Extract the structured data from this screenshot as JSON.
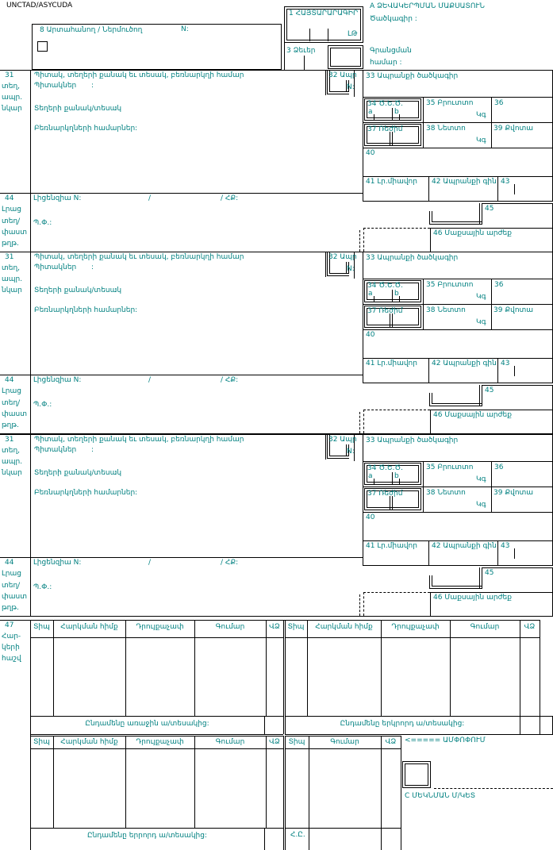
{
  "colors": {
    "label": "#008080",
    "line": "#000000",
    "background": "#ffffff"
  },
  "header": {
    "brand": "UNCTAD/ASYCUDA",
    "box8": {
      "label": "8 Արտահանող / Ներմուծող",
      "n": "N:"
    },
    "box1": {
      "label": "1 ՀԱՅՏԱՐԱՐԱԳԻՐ",
      "code": "ԼԹ"
    },
    "box3": {
      "label": "3 Ձեւեր"
    },
    "office": {
      "title": "A ՁԵՎԱԿԵՐՊՄԱՆ ՄԱՔՍԱՏՈՒՆ",
      "code_label": "Ծածկագիր :"
    },
    "registration": {
      "line1": "Գրանցման",
      "line2": "համար :"
    }
  },
  "item": {
    "no31": "31",
    "side31": [
      "տեղ,",
      "ապր.",
      "նկար"
    ],
    "title31": "Պիտակ, տեղերի քանակ եւ տեսակ, բեռնարկղի համար",
    "marks_label": "Պիտակներ",
    "colon": ":",
    "qty_label": "Տեղերի քանակ/տեսակ",
    "containers_label": "Բեռնարկղների համարներ:",
    "no32": "32 Ապր",
    "n32": "N:",
    "no33": "33 Ապրանքի ծածկագիր",
    "no34": "34 Ծ.Ե.Ծ.",
    "a": "a",
    "b": "b",
    "no35": "35 Բրուտտո",
    "kg": "Կգ",
    "no36": "36",
    "no37": "37 Ռեժիմ",
    "no38": "38 Նետտո",
    "no39": "39 Քվոտա",
    "no40": "40",
    "no41": "41 Լր.միավոր",
    "no42": "42 Ապրանքի գին",
    "no43": "43",
    "no44": "44",
    "side44": [
      "Լրաց",
      "տեղ/",
      "փաստ",
      "թղթ."
    ],
    "license_label": "Լիցենզիա N:",
    "slash": "/",
    "hq_label": "/ ՀՔ:",
    "pf_label": "Պ.Փ.:",
    "no45": "45",
    "no46": "46 Մաքսային արժեք"
  },
  "items_count": 3,
  "taxes": {
    "no47": "47",
    "side47": [
      "Հար-",
      "կերի",
      "հաշվ"
    ],
    "col_type": "Տիպ",
    "col_base": "Հարկման հիմք",
    "col_rate": "Դրույքաչափ",
    "col_amount": "Գումար",
    "col_mp": "ՎՁ",
    "total_first": "Ընդամենը առաջին ա/տեսակից:",
    "total_second": "Ընդամենը երկրորդ ա/տեսակից:",
    "total_third": "Ընդամենը երրորդ ա/տեսակից:",
    "summary_arrow": "<===== ԱՄՓՈՓՈՒՄ",
    "departure": "C ՄԵԿՆՄԱՆ Մ/ԿԵՏ",
    "grand_total": "Հ.Ը."
  }
}
